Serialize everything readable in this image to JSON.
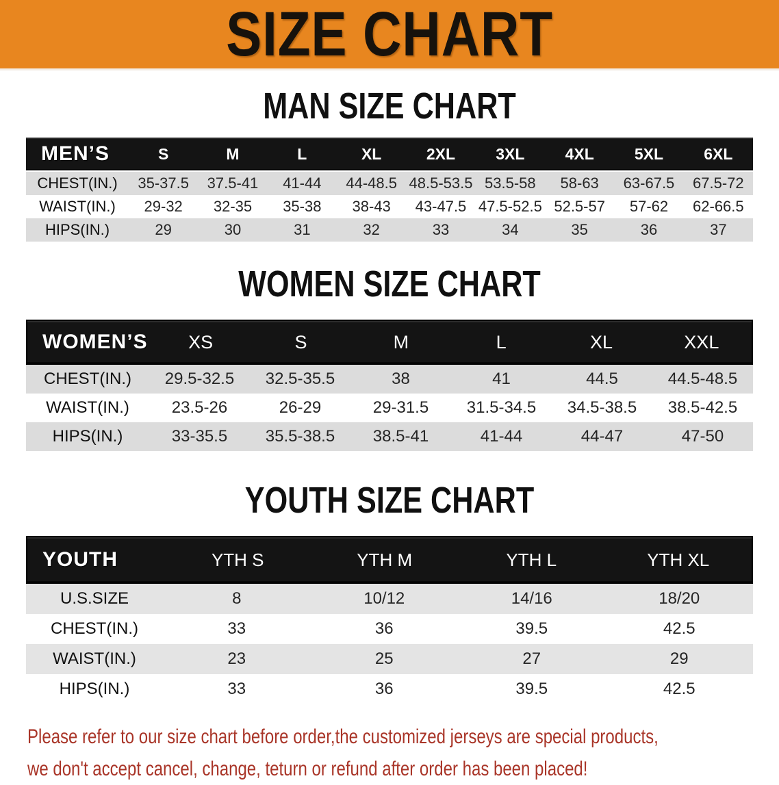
{
  "banner": {
    "title": "SIZE CHART"
  },
  "sections": [
    {
      "heading": "MAN SIZE CHART",
      "table": {
        "group_label": "MEN’S",
        "sizes": [
          "S",
          "M",
          "L",
          "XL",
          "2XL",
          "3XL",
          "4XL",
          "5XL",
          "6XL"
        ],
        "rows": [
          {
            "label": "CHEST(IN.)",
            "values": [
              "35-37.5",
              "37.5-41",
              "41-44",
              "44-48.5",
              "48.5-53.5",
              "53.5-58",
              "58-63",
              "63-67.5",
              "67.5-72"
            ]
          },
          {
            "label": "WAIST(IN.)",
            "values": [
              "29-32",
              "32-35",
              "35-38",
              "38-43",
              "43-47.5",
              "47.5-52.5",
              "52.5-57",
              "57-62",
              "62-66.5"
            ]
          },
          {
            "label": "HIPS(IN.)",
            "values": [
              "29",
              "30",
              "31",
              "32",
              "33",
              "34",
              "35",
              "36",
              "37"
            ]
          }
        ]
      }
    },
    {
      "heading": "WOMEN SIZE CHART",
      "table": {
        "group_label": "WOMEN’S",
        "sizes": [
          "XS",
          "S",
          "M",
          "L",
          "XL",
          "XXL"
        ],
        "rows": [
          {
            "label": "CHEST(IN.)",
            "values": [
              "29.5-32.5",
              "32.5-35.5",
              "38",
              "41",
              "44.5",
              "44.5-48.5"
            ]
          },
          {
            "label": "WAIST(IN.)",
            "values": [
              "23.5-26",
              "26-29",
              "29-31.5",
              "31.5-34.5",
              "34.5-38.5",
              "38.5-42.5"
            ]
          },
          {
            "label": "HIPS(IN.)",
            "values": [
              "33-35.5",
              "35.5-38.5",
              "38.5-41",
              "41-44",
              "44-47",
              "47-50"
            ]
          }
        ]
      }
    },
    {
      "heading": "YOUTH SIZE CHART",
      "table": {
        "group_label": "YOUTH",
        "sizes": [
          "YTH S",
          "YTH M",
          "YTH L",
          "YTH XL"
        ],
        "rows": [
          {
            "label": "U.S.SIZE",
            "values": [
              "8",
              "10/12",
              "14/16",
              "18/20"
            ]
          },
          {
            "label": "CHEST(IN.)",
            "values": [
              "33",
              "36",
              "39.5",
              "42.5"
            ]
          },
          {
            "label": "WAIST(IN.)",
            "values": [
              "23",
              "25",
              "27",
              "29"
            ]
          },
          {
            "label": "HIPS(IN.)",
            "values": [
              "33",
              "36",
              "39.5",
              "42.5"
            ]
          }
        ]
      }
    }
  ],
  "note": {
    "lines": [
      "Please refer to our size chart before order,the customized jerseys are special products,",
      "we don't accept cancel, change, teturn or refund after order has been placed!"
    ]
  },
  "colors": {
    "banner_orange": "#E8861F",
    "header_band_black": "#141414",
    "row_gray": "#DCDCDC",
    "note_red": "#A93528"
  }
}
